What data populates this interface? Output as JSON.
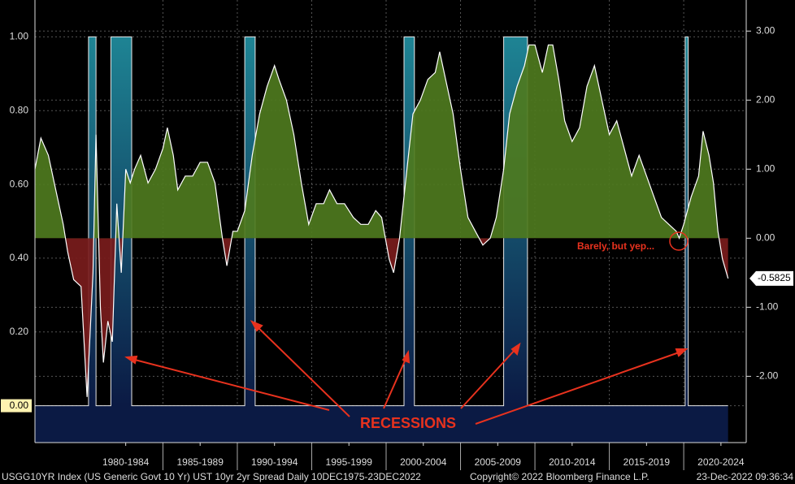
{
  "chart_data": {
    "type": "line",
    "annotations": [
      "RECESSIONS",
      "Barely, but yep..."
    ],
    "footer": {
      "left": "USGG10YR Index (US Generic Govt 10 Yr) UST 10yr 2yr Spread  Daily 10DEC1975-23DEC2022",
      "center": "Copyright© 2022 Bloomberg Finance L.P.",
      "right": "23-Dec-2022 09:36:34"
    },
    "xlim": [
      1976.4,
      2024.2
    ],
    "xticks": [
      {
        "value": 1982.5,
        "label": "1980-1984"
      },
      {
        "value": 1987.5,
        "label": "1985-1989"
      },
      {
        "value": 1992.5,
        "label": "1990-1994"
      },
      {
        "value": 1997.5,
        "label": "1995-1999"
      },
      {
        "value": 2002.5,
        "label": "2000-2004"
      },
      {
        "value": 2007.5,
        "label": "2005-2009"
      },
      {
        "value": 2012.5,
        "label": "2010-2014"
      },
      {
        "value": 2017.5,
        "label": "2015-2019"
      },
      {
        "value": 2022.5,
        "label": "2020-2024"
      }
    ],
    "ylim": [
      -0.1,
      1.1
    ],
    "yticks": [
      {
        "value": 0,
        "label": "0.00"
      },
      {
        "value": 0.2,
        "label": "0.20"
      },
      {
        "value": 0.4,
        "label": "0.40"
      },
      {
        "value": 0.6,
        "label": "0.60"
      },
      {
        "value": 0.8,
        "label": "0.80"
      },
      {
        "value": 1,
        "label": "1.00"
      }
    ],
    "y2lim": [
      -2.96,
      3.45
    ],
    "y2ticks": [
      {
        "value": -2,
        "label": "-2.00"
      },
      {
        "value": -1,
        "label": "-1.00"
      },
      {
        "value": 0,
        "label": "0.00"
      },
      {
        "value": 1,
        "label": "1.00"
      },
      {
        "value": 2,
        "label": "2.00"
      },
      {
        "value": 3,
        "label": "3.00"
      }
    ],
    "grid": true,
    "series": [
      {
        "name": "UST 10yr 2yr Spread",
        "axis": "y2",
        "color": "#ffffff",
        "positive_fill": "#4e7a1e",
        "negative_fill": "#7a1c1c",
        "x": [
          1976.4,
          1976.8,
          1977.3,
          1977.8,
          1978.3,
          1978.6,
          1979.0,
          1979.5,
          1979.9,
          1980.3,
          1980.5,
          1980.8,
          1981.0,
          1981.3,
          1981.6,
          1981.9,
          1982.2,
          1982.5,
          1982.8,
          1983.1,
          1983.5,
          1984.0,
          1984.5,
          1985.0,
          1985.3,
          1985.7,
          1986.0,
          1986.5,
          1987.0,
          1987.5,
          1988.0,
          1988.5,
          1989.0,
          1989.3,
          1989.7,
          1990.0,
          1990.5,
          1991.0,
          1991.5,
          1992.0,
          1992.5,
          1992.8,
          1993.3,
          1993.8,
          1994.3,
          1994.8,
          1995.3,
          1995.8,
          1996.2,
          1996.7,
          1997.2,
          1997.8,
          1998.3,
          1998.8,
          1999.3,
          1999.7,
          2000.2,
          2000.5,
          2000.9,
          2001.3,
          2001.8,
          2002.3,
          2002.8,
          2003.3,
          2003.6,
          2004.0,
          2004.5,
          2005.0,
          2005.5,
          2006.0,
          2006.5,
          2007.0,
          2007.4,
          2007.9,
          2008.3,
          2008.8,
          2009.3,
          2009.6,
          2010.0,
          2010.5,
          2010.9,
          2011.2,
          2011.6,
          2012.0,
          2012.5,
          2013.0,
          2013.5,
          2014.0,
          2014.5,
          2015.0,
          2015.5,
          2016.0,
          2016.5,
          2017.0,
          2017.5,
          2018.0,
          2018.5,
          2019.0,
          2019.5,
          2019.7,
          2020.0,
          2020.5,
          2021.0,
          2021.3,
          2021.7,
          2022.0,
          2022.3,
          2022.6,
          2022.98
        ],
        "values": [
          1.0,
          1.45,
          1.2,
          0.7,
          0.2,
          -0.2,
          -0.6,
          -0.7,
          -2.3,
          -0.5,
          1.5,
          -1.0,
          -1.8,
          -1.2,
          -1.5,
          0.5,
          -0.5,
          1.0,
          0.8,
          1.0,
          1.2,
          0.8,
          1.0,
          1.3,
          1.6,
          1.2,
          0.7,
          0.9,
          0.9,
          1.1,
          1.1,
          0.8,
          0.0,
          -0.4,
          0.1,
          0.1,
          0.4,
          1.2,
          1.8,
          2.2,
          2.5,
          2.3,
          2.0,
          1.5,
          0.8,
          0.2,
          0.5,
          0.5,
          0.7,
          0.5,
          0.5,
          0.3,
          0.2,
          0.2,
          0.4,
          0.3,
          -0.3,
          -0.5,
          0.0,
          0.8,
          1.8,
          2.0,
          2.3,
          2.4,
          2.7,
          2.3,
          1.8,
          1.0,
          0.3,
          0.1,
          -0.1,
          0.0,
          0.3,
          1.0,
          1.8,
          2.2,
          2.5,
          2.8,
          2.8,
          2.4,
          2.8,
          2.8,
          2.3,
          1.7,
          1.4,
          1.6,
          2.2,
          2.5,
          2.0,
          1.5,
          1.7,
          1.3,
          0.9,
          1.2,
          0.9,
          0.6,
          0.3,
          0.2,
          0.1,
          0.0,
          0.2,
          0.6,
          0.9,
          1.55,
          1.2,
          0.8,
          0.1,
          -0.3,
          -0.5825
        ]
      },
      {
        "name": "Recessions",
        "axis": "y",
        "color": "#1e8494",
        "base_color": "#0b1a44",
        "x": [
          1976.4,
          1980.0,
          1980.5,
          1981.5,
          1982.9,
          1990.5,
          1991.2,
          2001.2,
          2001.9,
          2007.9,
          2009.5,
          2020.1,
          2020.3,
          2022.98
        ],
        "values": [
          0,
          1,
          0,
          1,
          0,
          1,
          0,
          1,
          0,
          1,
          0,
          1,
          0,
          0
        ]
      }
    ]
  }
}
